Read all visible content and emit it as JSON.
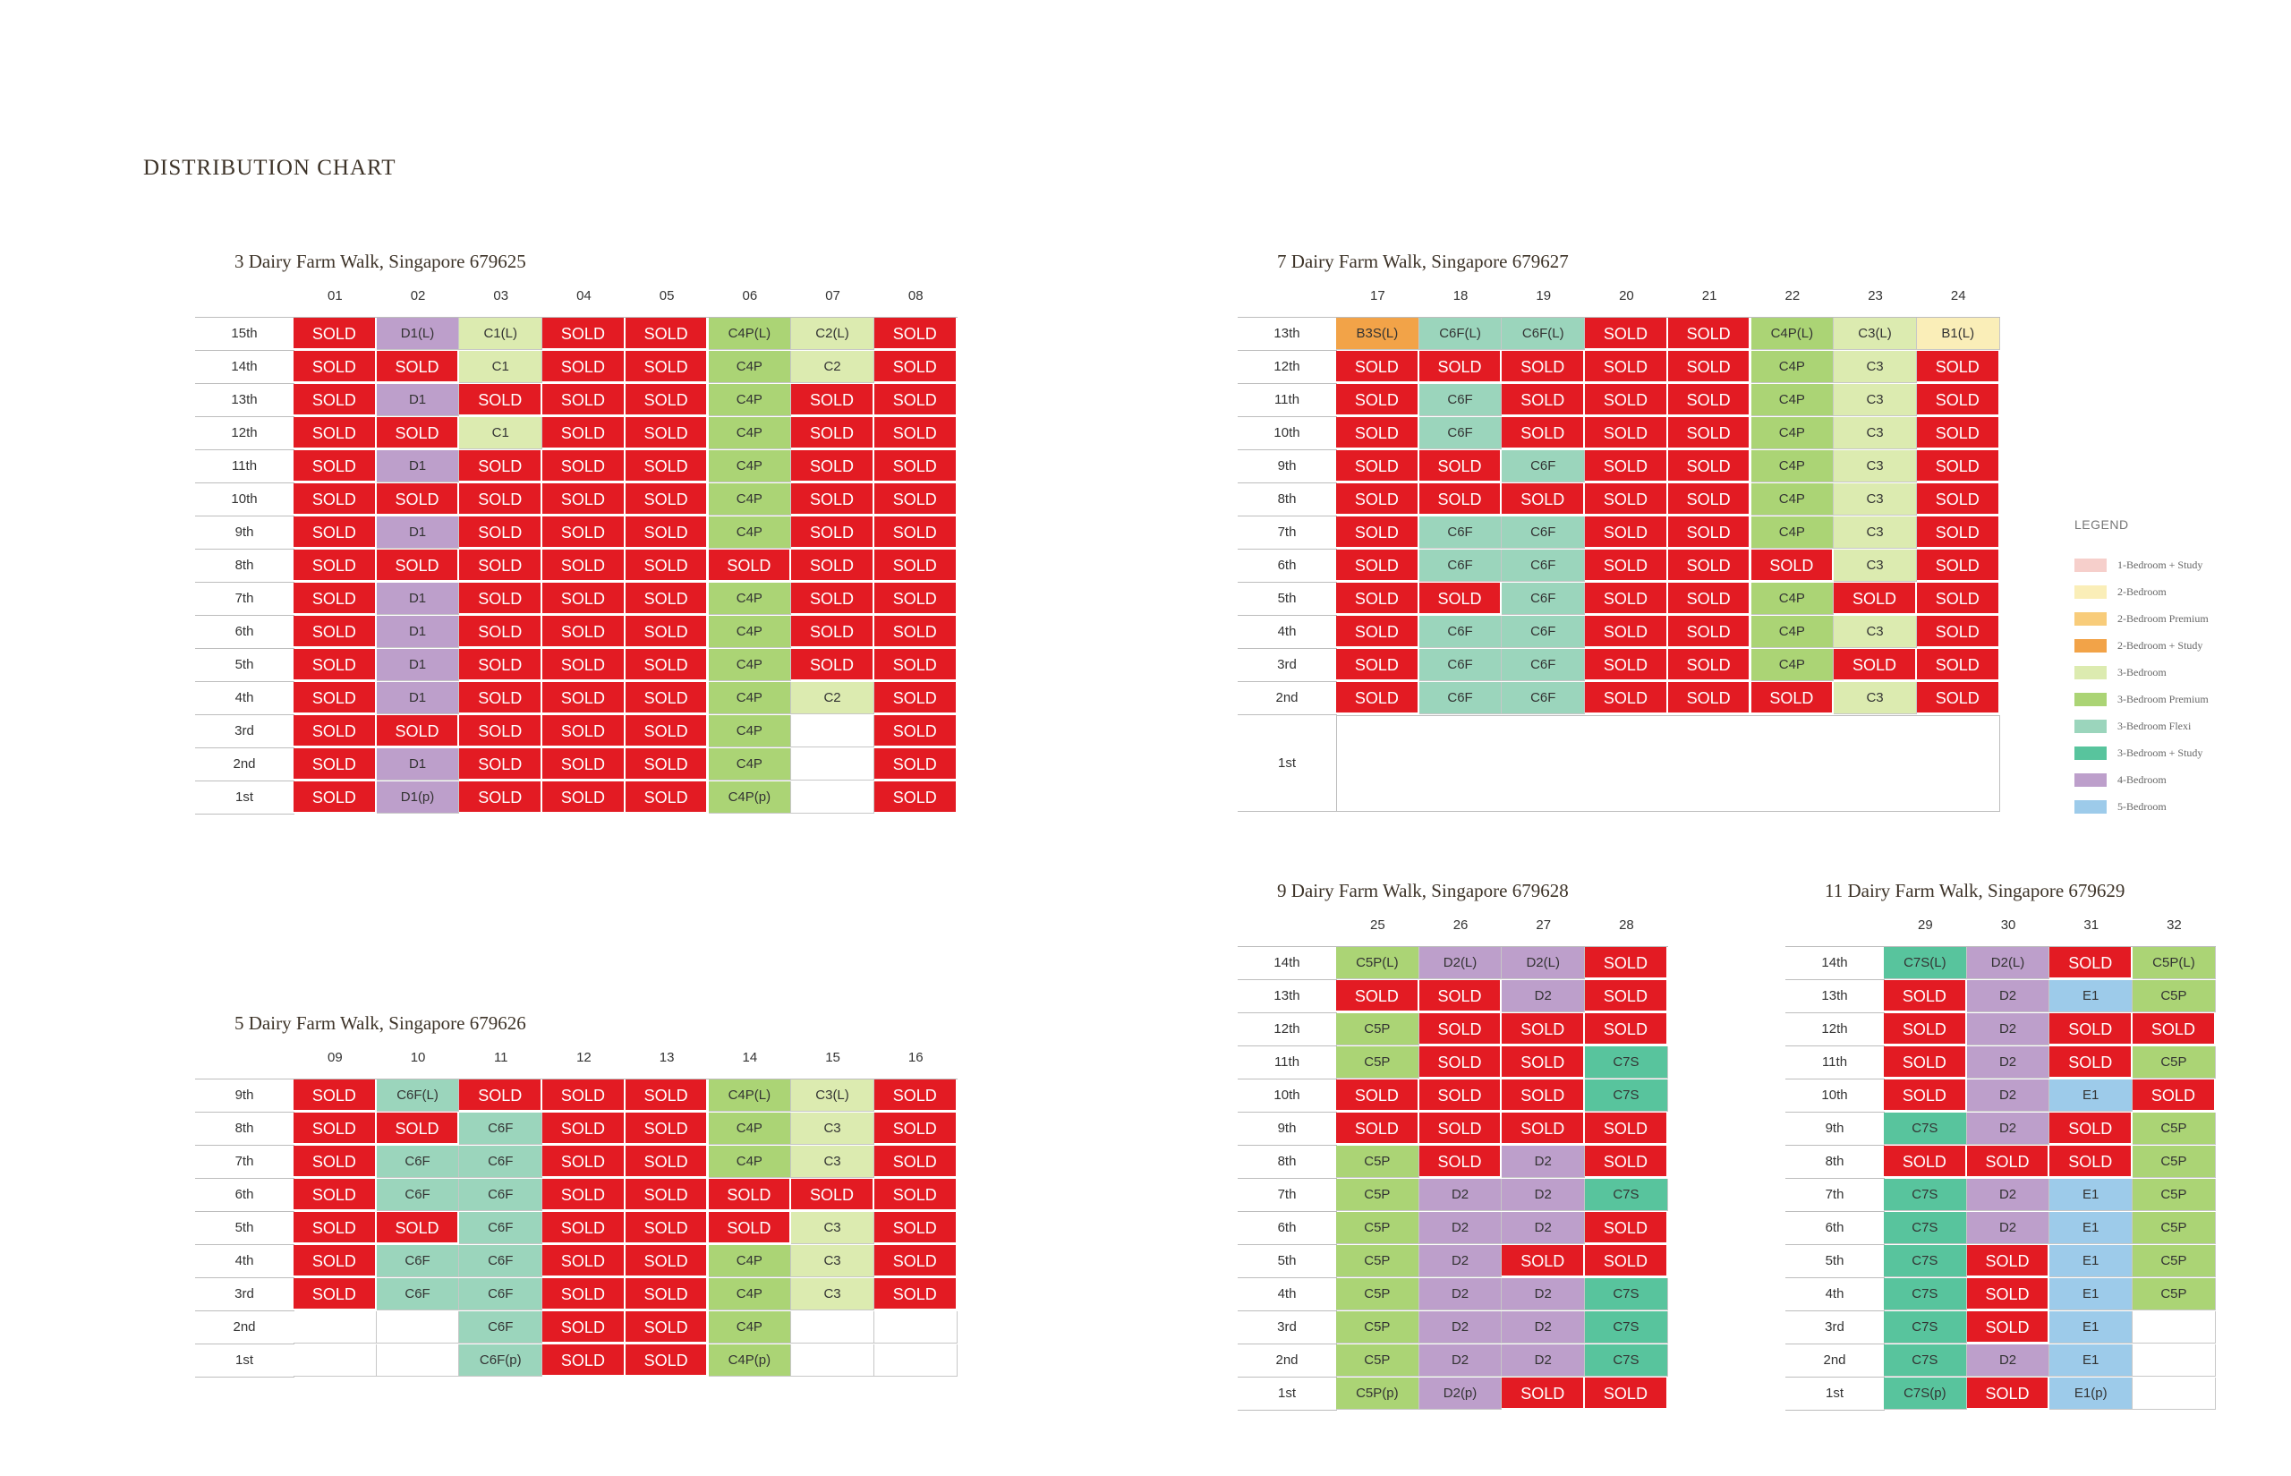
{
  "title": "DISTRIBUTION CHART",
  "legend": {
    "title": "LEGEND",
    "items": [
      {
        "label": "1-Bedroom + Study",
        "color": "#f6cfcb"
      },
      {
        "label": "2-Bedroom",
        "color": "#faeeb8"
      },
      {
        "label": "2-Bedroom Premium",
        "color": "#f8cc7a"
      },
      {
        "label": "2-Bedroom + Study",
        "color": "#f2a348"
      },
      {
        "label": "3-Bedroom",
        "color": "#dcebb0"
      },
      {
        "label": "3-Bedroom Premium",
        "color": "#abd475"
      },
      {
        "label": "3-Bedroom Flexi",
        "color": "#9bd5bc"
      },
      {
        "label": "3-Bedroom + Study",
        "color": "#58c49d"
      },
      {
        "label": "4-Bedroom",
        "color": "#bd9fcb"
      },
      {
        "label": "5-Bedroom",
        "color": "#9dcbea"
      }
    ]
  },
  "type_colors": {
    "B1": "#faeeb8",
    "B3S": "#f2a348",
    "C1": "#dcebb0",
    "C2": "#dcebb0",
    "C3": "#dcebb0",
    "C4P": "#abd475",
    "C5P": "#abd475",
    "C6F": "#9bd5bc",
    "C7S": "#58c49d",
    "D1": "#bd9fcb",
    "D2": "#bd9fcb",
    "E1": "#9dcbea"
  },
  "blocks": [
    {
      "id": "block3",
      "title": "3 Dairy Farm Walk, Singapore 679625",
      "columns": [
        "01",
        "02",
        "03",
        "04",
        "05",
        "06",
        "07",
        "08"
      ],
      "rows": [
        {
          "floor": "15th",
          "units": [
            "SOLD",
            "D1(L)",
            "C1(L)",
            "SOLD",
            "SOLD",
            "C4P(L)",
            "C2(L)",
            "SOLD"
          ]
        },
        {
          "floor": "14th",
          "units": [
            "SOLD",
            "SOLD",
            "C1",
            "SOLD",
            "SOLD",
            "C4P",
            "C2",
            "SOLD"
          ]
        },
        {
          "floor": "13th",
          "units": [
            "SOLD",
            "D1",
            "SOLD",
            "SOLD",
            "SOLD",
            "C4P",
            "SOLD",
            "SOLD"
          ]
        },
        {
          "floor": "12th",
          "units": [
            "SOLD",
            "SOLD",
            "C1",
            "SOLD",
            "SOLD",
            "C4P",
            "SOLD",
            "SOLD"
          ]
        },
        {
          "floor": "11th",
          "units": [
            "SOLD",
            "D1",
            "SOLD",
            "SOLD",
            "SOLD",
            "C4P",
            "SOLD",
            "SOLD"
          ]
        },
        {
          "floor": "10th",
          "units": [
            "SOLD",
            "SOLD",
            "SOLD",
            "SOLD",
            "SOLD",
            "C4P",
            "SOLD",
            "SOLD"
          ]
        },
        {
          "floor": "9th",
          "units": [
            "SOLD",
            "D1",
            "SOLD",
            "SOLD",
            "SOLD",
            "C4P",
            "SOLD",
            "SOLD"
          ]
        },
        {
          "floor": "8th",
          "units": [
            "SOLD",
            "SOLD",
            "SOLD",
            "SOLD",
            "SOLD",
            "SOLD",
            "SOLD",
            "SOLD"
          ]
        },
        {
          "floor": "7th",
          "units": [
            "SOLD",
            "D1",
            "SOLD",
            "SOLD",
            "SOLD",
            "C4P",
            "SOLD",
            "SOLD"
          ]
        },
        {
          "floor": "6th",
          "units": [
            "SOLD",
            "D1",
            "SOLD",
            "SOLD",
            "SOLD",
            "C4P",
            "SOLD",
            "SOLD"
          ]
        },
        {
          "floor": "5th",
          "units": [
            "SOLD",
            "D1",
            "SOLD",
            "SOLD",
            "SOLD",
            "C4P",
            "SOLD",
            "SOLD"
          ]
        },
        {
          "floor": "4th",
          "units": [
            "SOLD",
            "D1",
            "SOLD",
            "SOLD",
            "SOLD",
            "C4P",
            "C2",
            "SOLD"
          ]
        },
        {
          "floor": "3rd",
          "units": [
            "SOLD",
            "SOLD",
            "SOLD",
            "SOLD",
            "SOLD",
            "C4P",
            "",
            "SOLD"
          ]
        },
        {
          "floor": "2nd",
          "units": [
            "SOLD",
            "D1",
            "SOLD",
            "SOLD",
            "SOLD",
            "C4P",
            "",
            "SOLD"
          ]
        },
        {
          "floor": "1st",
          "units": [
            "SOLD",
            "D1(p)",
            "SOLD",
            "SOLD",
            "SOLD",
            "C4P(p)",
            "",
            "SOLD"
          ]
        }
      ]
    },
    {
      "id": "block7",
      "title": "7 Dairy Farm Walk, Singapore 679627",
      "columns": [
        "17",
        "18",
        "19",
        "20",
        "21",
        "22",
        "23",
        "24"
      ],
      "rows": [
        {
          "floor": "13th",
          "units": [
            "B3S(L)",
            "C6F(L)",
            "C6F(L)",
            "SOLD",
            "SOLD",
            "C4P(L)",
            "C3(L)",
            "B1(L)"
          ]
        },
        {
          "floor": "12th",
          "units": [
            "SOLD",
            "SOLD",
            "SOLD",
            "SOLD",
            "SOLD",
            "C4P",
            "C3",
            "SOLD"
          ]
        },
        {
          "floor": "11th",
          "units": [
            "SOLD",
            "C6F",
            "SOLD",
            "SOLD",
            "SOLD",
            "C4P",
            "C3",
            "SOLD"
          ]
        },
        {
          "floor": "10th",
          "units": [
            "SOLD",
            "C6F",
            "SOLD",
            "SOLD",
            "SOLD",
            "C4P",
            "C3",
            "SOLD"
          ]
        },
        {
          "floor": "9th",
          "units": [
            "SOLD",
            "SOLD",
            "C6F",
            "SOLD",
            "SOLD",
            "C4P",
            "C3",
            "SOLD"
          ]
        },
        {
          "floor": "8th",
          "units": [
            "SOLD",
            "SOLD",
            "SOLD",
            "SOLD",
            "SOLD",
            "C4P",
            "C3",
            "SOLD"
          ]
        },
        {
          "floor": "7th",
          "units": [
            "SOLD",
            "C6F",
            "C6F",
            "SOLD",
            "SOLD",
            "C4P",
            "C3",
            "SOLD"
          ]
        },
        {
          "floor": "6th",
          "units": [
            "SOLD",
            "C6F",
            "C6F",
            "SOLD",
            "SOLD",
            "SOLD",
            "C3",
            "SOLD"
          ]
        },
        {
          "floor": "5th",
          "units": [
            "SOLD",
            "SOLD",
            "C6F",
            "SOLD",
            "SOLD",
            "C4P",
            "SOLD",
            "SOLD"
          ]
        },
        {
          "floor": "4th",
          "units": [
            "SOLD",
            "C6F",
            "C6F",
            "SOLD",
            "SOLD",
            "C4P",
            "C3",
            "SOLD"
          ]
        },
        {
          "floor": "3rd",
          "units": [
            "SOLD",
            "C6F",
            "C6F",
            "SOLD",
            "SOLD",
            "C4P",
            "SOLD",
            "SOLD"
          ]
        },
        {
          "floor": "2nd",
          "units": [
            "SOLD",
            "C6F",
            "C6F",
            "SOLD",
            "SOLD",
            "SOLD",
            "C3",
            "SOLD"
          ]
        }
      ],
      "bottom_floor": "1st"
    },
    {
      "id": "block5",
      "title": "5 Dairy Farm Walk, Singapore 679626",
      "columns": [
        "09",
        "10",
        "11",
        "12",
        "13",
        "14",
        "15",
        "16"
      ],
      "rows": [
        {
          "floor": "9th",
          "units": [
            "SOLD",
            "C6F(L)",
            "SOLD",
            "SOLD",
            "SOLD",
            "C4P(L)",
            "C3(L)",
            "SOLD"
          ]
        },
        {
          "floor": "8th",
          "units": [
            "SOLD",
            "SOLD",
            "C6F",
            "SOLD",
            "SOLD",
            "C4P",
            "C3",
            "SOLD"
          ]
        },
        {
          "floor": "7th",
          "units": [
            "SOLD",
            "C6F",
            "C6F",
            "SOLD",
            "SOLD",
            "C4P",
            "C3",
            "SOLD"
          ]
        },
        {
          "floor": "6th",
          "units": [
            "SOLD",
            "C6F",
            "C6F",
            "SOLD",
            "SOLD",
            "SOLD",
            "SOLD",
            "SOLD"
          ]
        },
        {
          "floor": "5th",
          "units": [
            "SOLD",
            "SOLD",
            "C6F",
            "SOLD",
            "SOLD",
            "SOLD",
            "C3",
            "SOLD"
          ]
        },
        {
          "floor": "4th",
          "units": [
            "SOLD",
            "C6F",
            "C6F",
            "SOLD",
            "SOLD",
            "C4P",
            "C3",
            "SOLD"
          ]
        },
        {
          "floor": "3rd",
          "units": [
            "SOLD",
            "C6F",
            "C6F",
            "SOLD",
            "SOLD",
            "C4P",
            "C3",
            "SOLD"
          ]
        },
        {
          "floor": "2nd",
          "units": [
            "",
            "",
            "C6F",
            "SOLD",
            "SOLD",
            "C4P",
            "",
            ""
          ]
        },
        {
          "floor": "1st",
          "units": [
            "",
            "",
            "C6F(p)",
            "SOLD",
            "SOLD",
            "C4P(p)",
            "",
            ""
          ]
        }
      ]
    },
    {
      "id": "block9",
      "title": "9 Dairy Farm Walk, Singapore 679628",
      "columns": [
        "25",
        "26",
        "27",
        "28"
      ],
      "rows": [
        {
          "floor": "14th",
          "units": [
            "C5P(L)",
            "D2(L)",
            "D2(L)",
            "SOLD"
          ]
        },
        {
          "floor": "13th",
          "units": [
            "SOLD",
            "SOLD",
            "D2",
            "SOLD"
          ]
        },
        {
          "floor": "12th",
          "units": [
            "C5P",
            "SOLD",
            "SOLD",
            "SOLD"
          ]
        },
        {
          "floor": "11th",
          "units": [
            "C5P",
            "SOLD",
            "SOLD",
            "C7S"
          ]
        },
        {
          "floor": "10th",
          "units": [
            "SOLD",
            "SOLD",
            "SOLD",
            "C7S"
          ]
        },
        {
          "floor": "9th",
          "units": [
            "SOLD",
            "SOLD",
            "SOLD",
            "SOLD"
          ]
        },
        {
          "floor": "8th",
          "units": [
            "C5P",
            "SOLD",
            "D2",
            "SOLD"
          ]
        },
        {
          "floor": "7th",
          "units": [
            "C5P",
            "D2",
            "D2",
            "C7S"
          ]
        },
        {
          "floor": "6th",
          "units": [
            "C5P",
            "D2",
            "D2",
            "SOLD"
          ]
        },
        {
          "floor": "5th",
          "units": [
            "C5P",
            "D2",
            "SOLD",
            "SOLD"
          ]
        },
        {
          "floor": "4th",
          "units": [
            "C5P",
            "D2",
            "D2",
            "C7S"
          ]
        },
        {
          "floor": "3rd",
          "units": [
            "C5P",
            "D2",
            "D2",
            "C7S"
          ]
        },
        {
          "floor": "2nd",
          "units": [
            "C5P",
            "D2",
            "D2",
            "C7S"
          ]
        },
        {
          "floor": "1st",
          "units": [
            "C5P(p)",
            "D2(p)",
            "SOLD",
            "SOLD"
          ]
        }
      ]
    },
    {
      "id": "block11",
      "title": "11 Dairy Farm Walk, Singapore 679629",
      "columns": [
        "29",
        "30",
        "31",
        "32"
      ],
      "rows": [
        {
          "floor": "14th",
          "units": [
            "C7S(L)",
            "D2(L)",
            "SOLD",
            "C5P(L)"
          ]
        },
        {
          "floor": "13th",
          "units": [
            "SOLD",
            "D2",
            "E1",
            "C5P"
          ]
        },
        {
          "floor": "12th",
          "units": [
            "SOLD",
            "D2",
            "SOLD",
            "SOLD"
          ]
        },
        {
          "floor": "11th",
          "units": [
            "SOLD",
            "D2",
            "SOLD",
            "C5P"
          ]
        },
        {
          "floor": "10th",
          "units": [
            "SOLD",
            "D2",
            "E1",
            "SOLD"
          ]
        },
        {
          "floor": "9th",
          "units": [
            "C7S",
            "D2",
            "SOLD",
            "C5P"
          ]
        },
        {
          "floor": "8th",
          "units": [
            "SOLD",
            "SOLD",
            "SOLD",
            "C5P"
          ]
        },
        {
          "floor": "7th",
          "units": [
            "C7S",
            "D2",
            "E1",
            "C5P"
          ]
        },
        {
          "floor": "6th",
          "units": [
            "C7S",
            "D2",
            "E1",
            "C5P"
          ]
        },
        {
          "floor": "5th",
          "units": [
            "C7S",
            "SOLD",
            "E1",
            "C5P"
          ]
        },
        {
          "floor": "4th",
          "units": [
            "C7S",
            "SOLD",
            "E1",
            "C5P"
          ]
        },
        {
          "floor": "3rd",
          "units": [
            "C7S",
            "SOLD",
            "E1",
            ""
          ]
        },
        {
          "floor": "2nd",
          "units": [
            "C7S",
            "D2",
            "E1",
            ""
          ]
        },
        {
          "floor": "1st",
          "units": [
            "C7S(p)",
            "SOLD",
            "E1(p)",
            ""
          ]
        }
      ]
    }
  ]
}
